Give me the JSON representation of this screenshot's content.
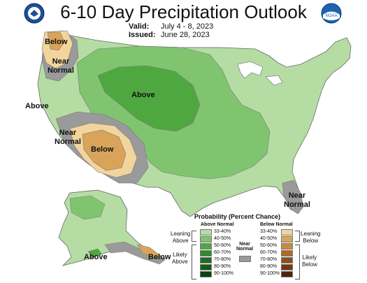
{
  "header": {
    "title": "6-10 Day Precipitation Outlook",
    "valid_label": "Valid:",
    "valid_value": "July 4 - 8, 2023",
    "issued_label": "Issued:",
    "issued_value": "June 28, 2023"
  },
  "logos": {
    "left": "noaa-cpc-seal-icon",
    "right": "noaa-logo-icon",
    "right_text": "NOAA"
  },
  "map_labels": {
    "below_nw": "Below",
    "near_normal_nw": "Near\nNormal",
    "above_west": "Above",
    "above_central": "Above",
    "near_normal_sw": "Near\nNormal",
    "below_sw": "Below",
    "near_normal_fl": "Near\nNormal",
    "above_ak": "Above",
    "below_ak": "Below"
  },
  "legend": {
    "title": "Probability (Percent Chance)",
    "above_header": "Above Normal",
    "below_header": "Below Normal",
    "near_header": "Near\nNormal",
    "leaning_above": "Leaning\nAbove",
    "likely_above": "Likely\nAbove",
    "leaning_below": "Leaning\nBelow",
    "likely_below": "Likely\nBelow",
    "above_bins": [
      {
        "label": "33-40%",
        "color": "#b5dda3"
      },
      {
        "label": "40-50%",
        "color": "#80c470"
      },
      {
        "label": "50-60%",
        "color": "#4fa83f"
      },
      {
        "label": "60-70%",
        "color": "#2e8a2a"
      },
      {
        "label": "70-80%",
        "color": "#1f6e20"
      },
      {
        "label": "80-90%",
        "color": "#165a18"
      },
      {
        "label": "90-100%",
        "color": "#0f4210"
      }
    ],
    "below_bins": [
      {
        "label": "33-40%",
        "color": "#f2d59c"
      },
      {
        "label": "40-50%",
        "color": "#d9a45a"
      },
      {
        "label": "50-60%",
        "color": "#c88a3a"
      },
      {
        "label": "60-70%",
        "color": "#b06a28"
      },
      {
        "label": "70-80%",
        "color": "#8f4e1e"
      },
      {
        "label": "80-90%",
        "color": "#6e3814"
      },
      {
        "label": "90-100%",
        "color": "#4e240c"
      }
    ],
    "near_color": "#9a9a9a"
  }
}
